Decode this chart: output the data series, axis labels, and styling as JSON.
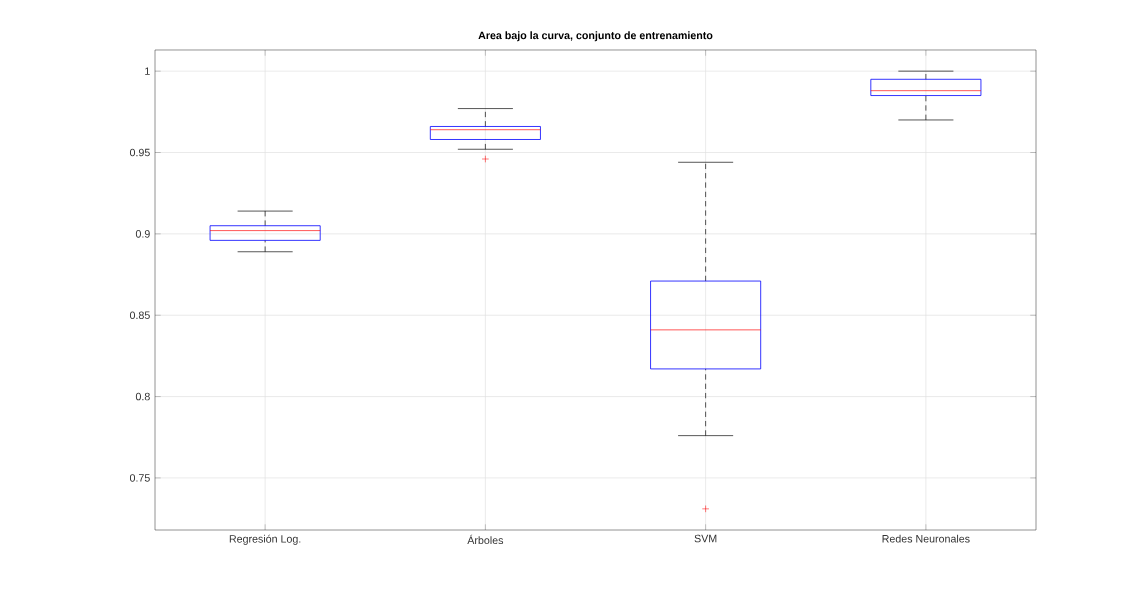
{
  "chart_data": {
    "type": "box",
    "title": "Area bajo la curva, conjunto de entrenamiento",
    "categories": [
      "Regresión Log.",
      "Árboles",
      "SVM",
      "Redes Neuronales"
    ],
    "color": "#0000ff",
    "boxes": [
      {
        "low": 0.889,
        "q1": 0.896,
        "median": 0.902,
        "q3": 0.905,
        "high": 0.914
      },
      {
        "low": 0.952,
        "q1": 0.958,
        "median": 0.964,
        "q3": 0.966,
        "high": 0.977,
        "outliers": [
          0.946
        ]
      },
      {
        "low": 0.776,
        "q1": 0.817,
        "median": 0.841,
        "q3": 0.871,
        "high": 0.944,
        "outliers": [
          0.731
        ]
      },
      {
        "low": 0.97,
        "q1": 0.985,
        "median": 0.988,
        "q3": 0.995,
        "high": 1.0
      }
    ],
    "ylim": [
      0.718,
      1.013
    ],
    "yticks": [
      0.75,
      0.8,
      0.85,
      0.9,
      0.95,
      1
    ],
    "grid": true
  }
}
